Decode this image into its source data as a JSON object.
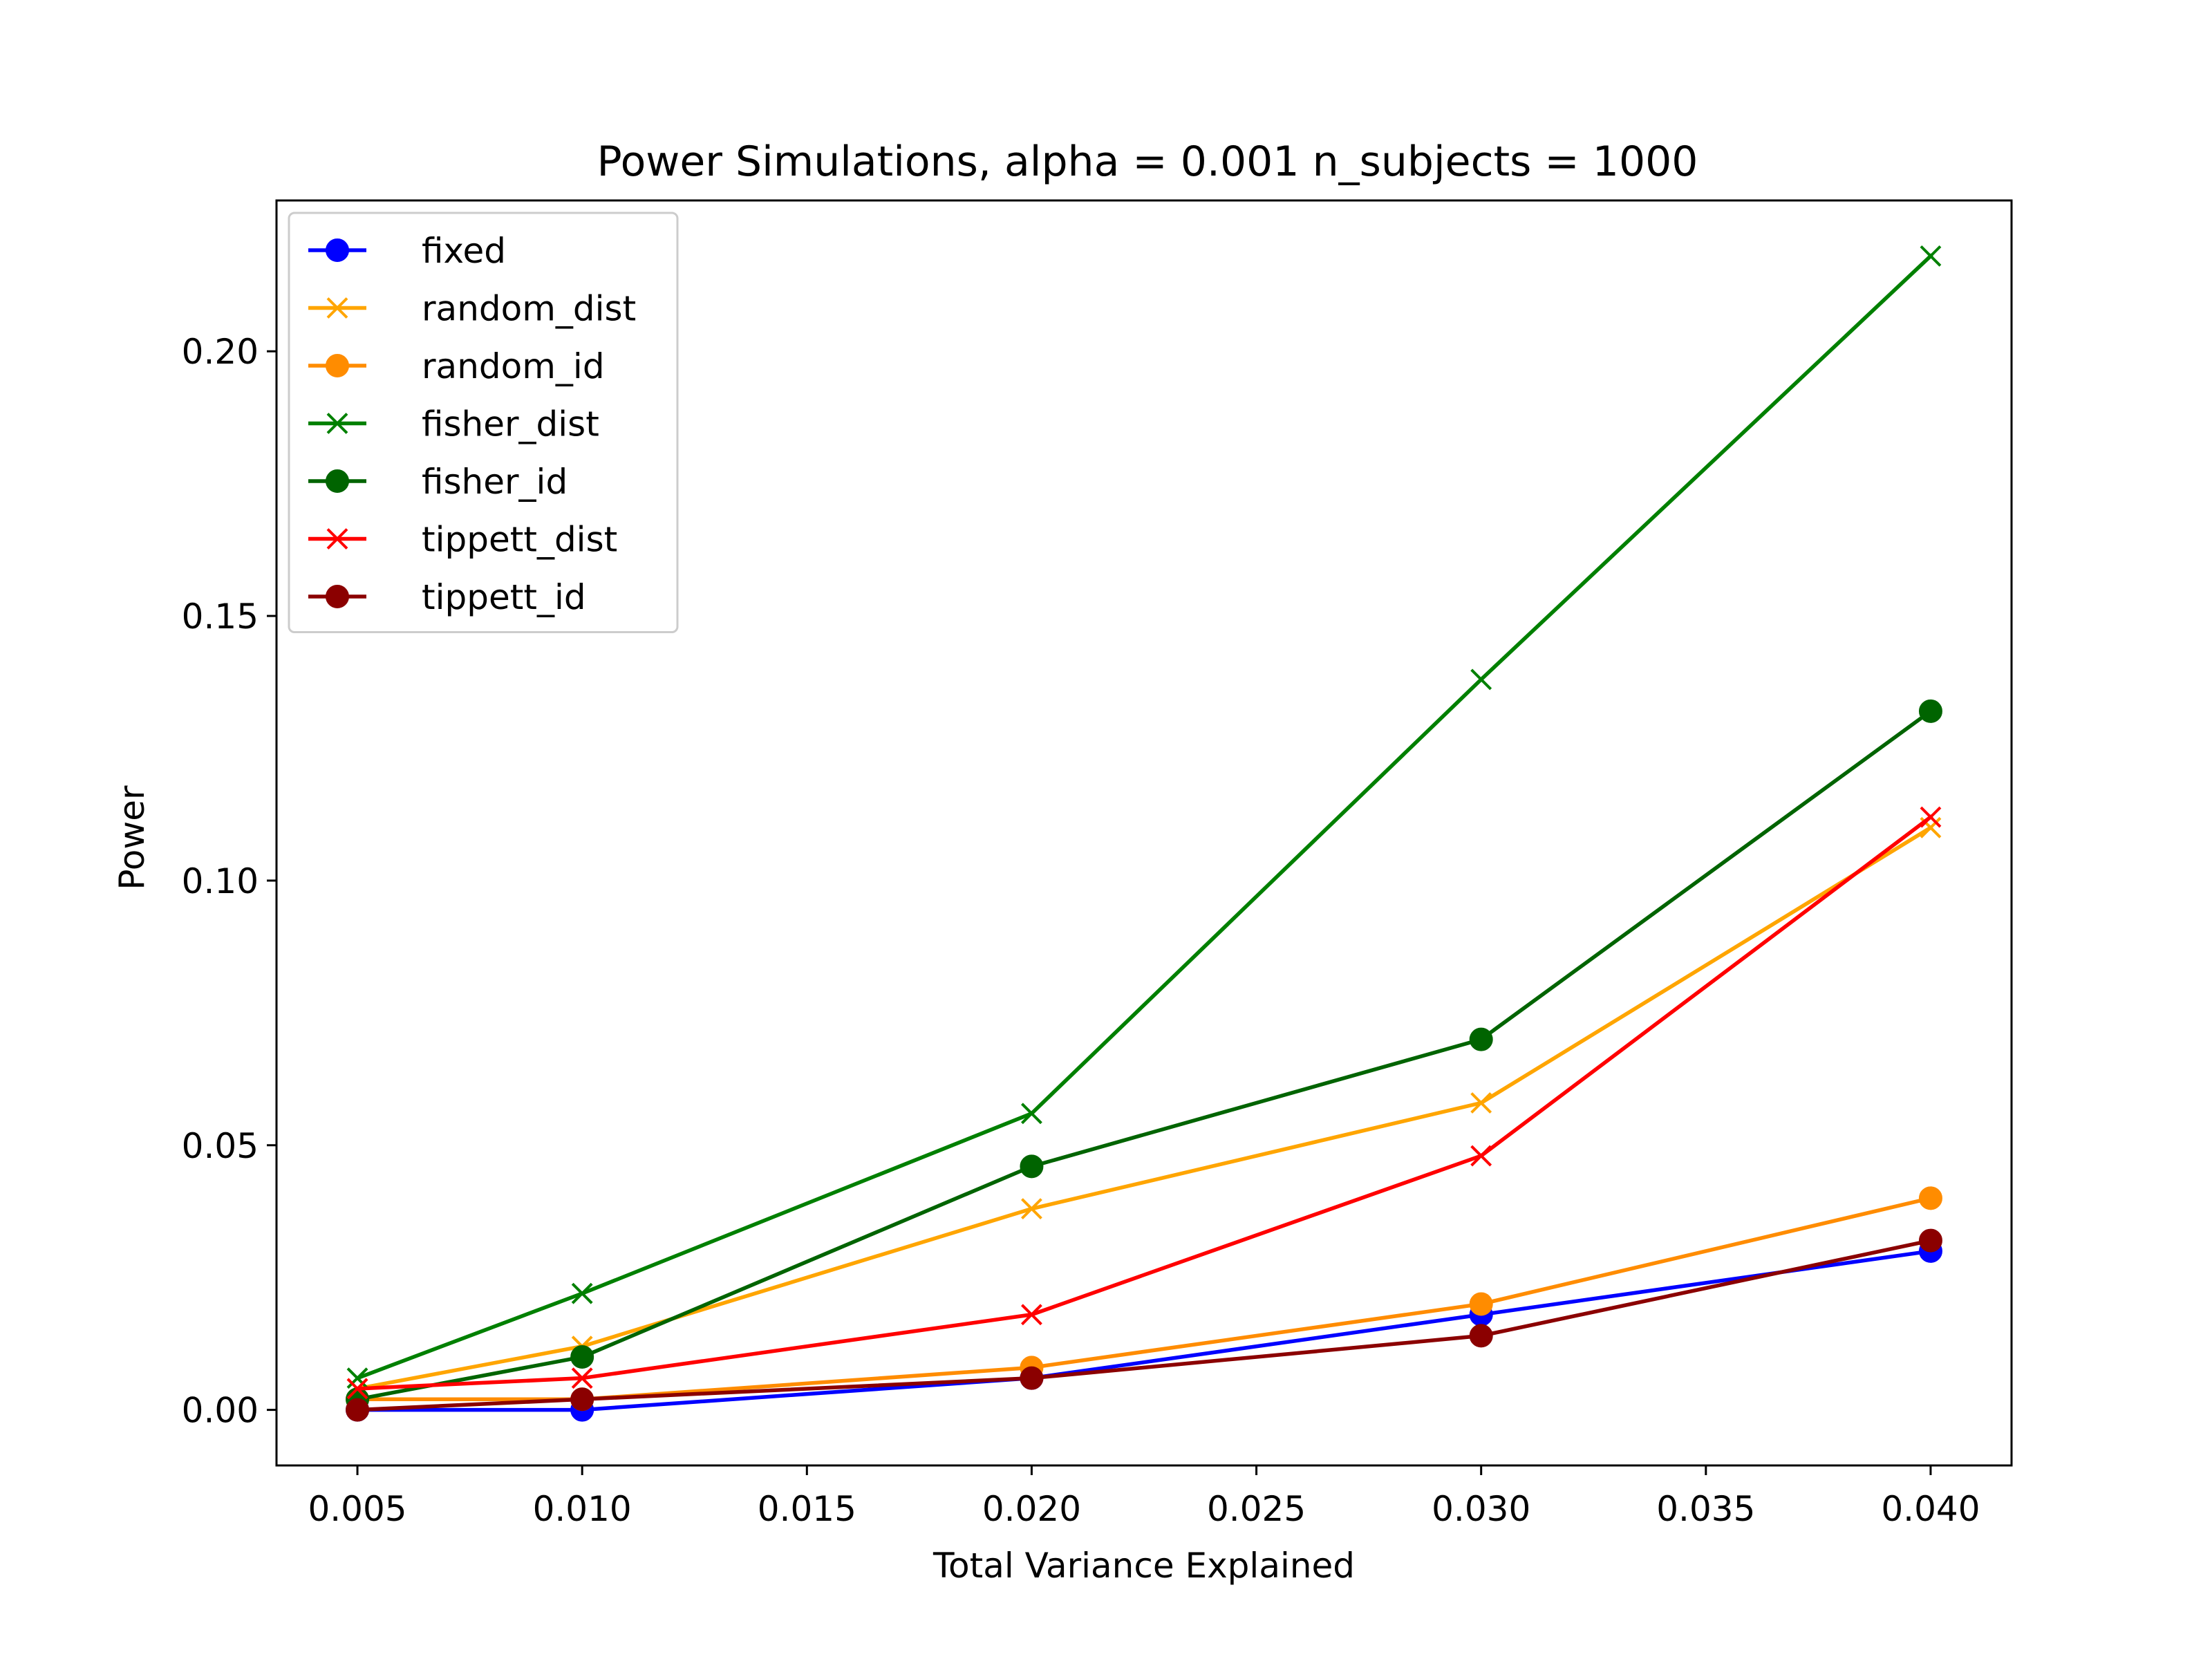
{
  "chart_data": {
    "type": "line",
    "title": "Power Simulations, alpha = 0.001 n_subjects = 1000",
    "xlabel": "Total Variance Explained",
    "ylabel": "Power",
    "x": [
      0.005,
      0.01,
      0.02,
      0.03,
      0.04
    ],
    "xlim": [
      0.0032,
      0.0418
    ],
    "ylim": [
      -0.0105,
      0.2285
    ],
    "xticks": [
      0.005,
      0.01,
      0.015,
      0.02,
      0.025,
      0.03,
      0.035,
      0.04
    ],
    "xtick_labels": [
      "0.005",
      "0.010",
      "0.015",
      "0.020",
      "0.025",
      "0.030",
      "0.035",
      "0.040"
    ],
    "yticks": [
      0.0,
      0.05,
      0.1,
      0.15,
      0.2
    ],
    "ytick_labels": [
      "0.00",
      "0.05",
      "0.10",
      "0.15",
      "0.20"
    ],
    "grid": false,
    "legend_position": "top-left",
    "series": [
      {
        "name": "fixed",
        "color": "#0000ff",
        "marker": "circle",
        "values": [
          0.0,
          0.0,
          0.006,
          0.018,
          0.03
        ]
      },
      {
        "name": "random_dist",
        "color": "#ffa500",
        "marker": "x",
        "values": [
          0.004,
          0.012,
          0.038,
          0.058,
          0.11
        ]
      },
      {
        "name": "random_id",
        "color": "#ff8c00",
        "marker": "circle",
        "values": [
          0.002,
          0.002,
          0.008,
          0.02,
          0.04
        ]
      },
      {
        "name": "fisher_dist",
        "color": "#008000",
        "marker": "x",
        "values": [
          0.006,
          0.022,
          0.056,
          0.138,
          0.218
        ]
      },
      {
        "name": "fisher_id",
        "color": "#006400",
        "marker": "circle",
        "values": [
          0.002,
          0.01,
          0.046,
          0.07,
          0.132
        ]
      },
      {
        "name": "tippett_dist",
        "color": "#ff0000",
        "marker": "x",
        "values": [
          0.004,
          0.006,
          0.018,
          0.048,
          0.112
        ]
      },
      {
        "name": "tippett_id",
        "color": "#8b0000",
        "marker": "circle",
        "values": [
          0.0,
          0.002,
          0.006,
          0.014,
          0.032
        ]
      }
    ]
  }
}
